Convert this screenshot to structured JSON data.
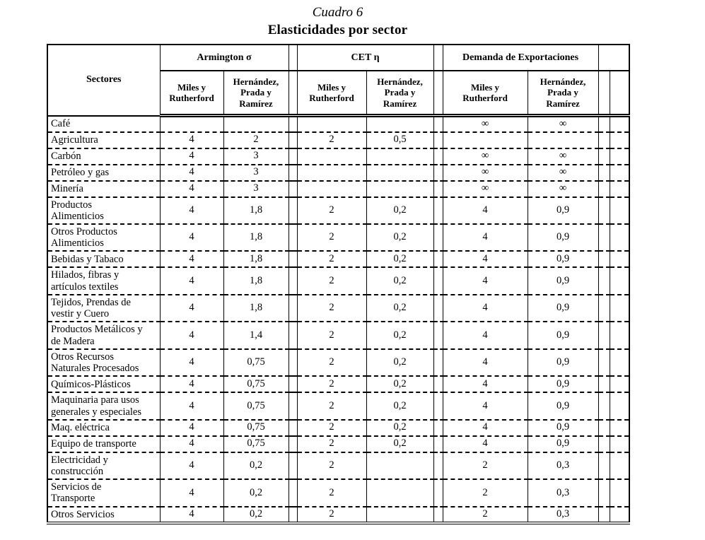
{
  "page": {
    "caption": "Cuadro 6",
    "title": "Elasticidades por sector"
  },
  "table": {
    "corner_header": "Sectores",
    "column_groups": [
      {
        "label": "Armington σ"
      },
      {
        "label": "CET η"
      },
      {
        "label": "Demanda de Exportaciones"
      }
    ],
    "sub_columns": [
      "Miles y Rutherford",
      "Hernández, Prada y Ramírez"
    ],
    "rows": [
      {
        "sector": "Café",
        "values": [
          "",
          "",
          "",
          "",
          "∞",
          "∞"
        ]
      },
      {
        "sector": "Agricultura",
        "values": [
          "4",
          "2",
          "2",
          "0,5",
          "",
          ""
        ]
      },
      {
        "sector": "Carbón",
        "values": [
          "4",
          "3",
          "",
          "",
          "∞",
          "∞"
        ]
      },
      {
        "sector": "Petróleo y gas",
        "values": [
          "4",
          "3",
          "",
          "",
          "∞",
          "∞"
        ]
      },
      {
        "sector": "Minería",
        "values": [
          "4",
          "3",
          "",
          "",
          "∞",
          "∞"
        ]
      },
      {
        "sector": "Productos\nAlimenticios",
        "values": [
          "4",
          "1,8",
          "2",
          "0,2",
          "4",
          "0,9"
        ]
      },
      {
        "sector": "Otros Productos\nAlimenticios",
        "values": [
          "4",
          "1,8",
          "2",
          "0,2",
          "4",
          "0,9"
        ]
      },
      {
        "sector": "Bebidas y Tabaco",
        "values": [
          "4",
          "1,8",
          "2",
          "0,2",
          "4",
          "0,9"
        ]
      },
      {
        "sector": "Hilados, fibras y\nartículos textiles",
        "values": [
          "4",
          "1,8",
          "2",
          "0,2",
          "4",
          "0,9"
        ]
      },
      {
        "sector": "Tejidos, Prendas de\nvestir y Cuero",
        "values": [
          "4",
          "1,8",
          "2",
          "0,2",
          "4",
          "0,9"
        ]
      },
      {
        "sector": "Productos Metálicos y\nde Madera",
        "values": [
          "4",
          "1,4",
          "2",
          "0,2",
          "4",
          "0,9"
        ]
      },
      {
        "sector": "Otros Recursos\nNaturales Procesados",
        "values": [
          "4",
          "0,75",
          "2",
          "0,2",
          "4",
          "0,9"
        ]
      },
      {
        "sector": "Químicos-Plásticos",
        "values": [
          "4",
          "0,75",
          "2",
          "0,2",
          "4",
          "0,9"
        ]
      },
      {
        "sector": "Maquinaria para usos\ngenerales y especiales",
        "values": [
          "4",
          "0,75",
          "2",
          "0,2",
          "4",
          "0,9"
        ]
      },
      {
        "sector": "Maq. eléctrica",
        "values": [
          "4",
          "0,75",
          "2",
          "0,2",
          "4",
          "0,9"
        ]
      },
      {
        "sector": "Equipo de transporte",
        "values": [
          "4",
          "0,75",
          "2",
          "0,2",
          "4",
          "0,9"
        ]
      },
      {
        "sector": "Electricidad y\nconstrucción",
        "values": [
          "4",
          "0,2",
          "2",
          "",
          "2",
          "0,3"
        ]
      },
      {
        "sector": "Servicios de\nTransporte",
        "values": [
          "4",
          "0,2",
          "2",
          "",
          "2",
          "0,3"
        ]
      },
      {
        "sector": "Otros Servicios",
        "values": [
          "4",
          "0,2",
          "2",
          "",
          "2",
          "0,3"
        ]
      }
    ]
  }
}
